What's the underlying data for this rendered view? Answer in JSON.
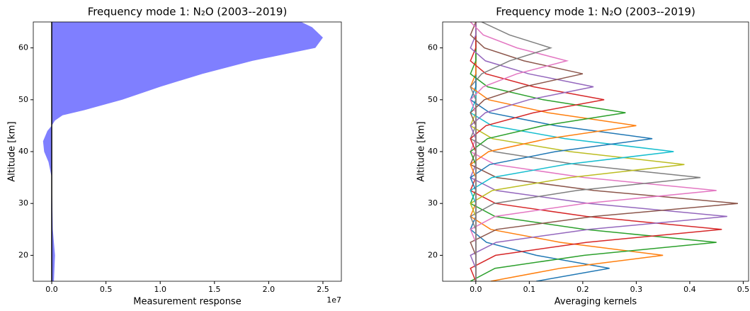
{
  "chart_data": [
    {
      "type": "area",
      "title": "Frequency mode 1: N₂O (2003--2019)",
      "xlabel": "Measurement response",
      "ylabel": "Altitude [km]",
      "x_offset_label": "1e7",
      "y": [
        15,
        20,
        25,
        30,
        35,
        38,
        40,
        42,
        44,
        45,
        46,
        47,
        48,
        50,
        52.5,
        55,
        57.5,
        60,
        62,
        64,
        65
      ],
      "values": [
        200000,
        300000,
        100000,
        50000,
        0,
        -300000,
        -700000,
        -800000,
        -400000,
        0,
        300000,
        1000000,
        3000000,
        6500000,
        10000000,
        13900000,
        18500000,
        24300000,
        25000000,
        24000000,
        23000000
      ],
      "color": "#7f7fff",
      "zero_line_color": "#000000",
      "xlim": [
        -1700000,
        26700000
      ],
      "ylim": [
        15,
        65
      ],
      "xticks": [
        {
          "value": 0,
          "label": "0.0"
        },
        {
          "value": 5000000,
          "label": "0.5"
        },
        {
          "value": 10000000,
          "label": "1.0"
        },
        {
          "value": 15000000,
          "label": "1.5"
        },
        {
          "value": 20000000,
          "label": "2.0"
        },
        {
          "value": 25000000,
          "label": "2.5"
        }
      ],
      "yticks": [
        20,
        30,
        40,
        50,
        60
      ]
    },
    {
      "type": "line",
      "title": "Frequency mode 1: N₂O (2003--2019)",
      "xlabel": "Averaging kernels",
      "ylabel": "Altitude [km]",
      "y": [
        15,
        17.5,
        20,
        22.5,
        25,
        27.5,
        30,
        32.5,
        35,
        37.5,
        40,
        42.5,
        45,
        47.5,
        50,
        52.5,
        55,
        57.5,
        60,
        62.5,
        65
      ],
      "series": [
        {
          "color": "#1f77b4",
          "values": [
            0.113,
            0.25,
            0.113,
            0.02,
            -0.01,
            0,
            0,
            0,
            0,
            0,
            0,
            0,
            0,
            0,
            0,
            0,
            0,
            0,
            0,
            0,
            0
          ]
        },
        {
          "color": "#ff7f0e",
          "values": [
            0.028,
            0.158,
            0.35,
            0.158,
            0.028,
            -0.01,
            0,
            0,
            0,
            0,
            0,
            0,
            0,
            0,
            0,
            0,
            0,
            0,
            0,
            0,
            0
          ]
        },
        {
          "color": "#2ca02c",
          "values": [
            -0.01,
            0.036,
            0.203,
            0.45,
            0.203,
            0.036,
            -0.01,
            0,
            0,
            0,
            0,
            0,
            0,
            0,
            0,
            0,
            0,
            0,
            0,
            0,
            0
          ]
        },
        {
          "color": "#d62728",
          "values": [
            0,
            -0.01,
            0.037,
            0.207,
            0.46,
            0.207,
            0.037,
            -0.01,
            0,
            0,
            0,
            0,
            0,
            0,
            0,
            0,
            0,
            0,
            0,
            0,
            0
          ]
        },
        {
          "color": "#9467bd",
          "values": [
            0,
            0,
            -0.01,
            0.038,
            0.212,
            0.47,
            0.212,
            0.038,
            -0.01,
            0,
            0,
            0,
            0,
            0,
            0,
            0,
            0,
            0,
            0,
            0,
            0
          ]
        },
        {
          "color": "#8c564b",
          "values": [
            0,
            0,
            0,
            -0.01,
            0.039,
            0.221,
            0.49,
            0.221,
            0.039,
            -0.01,
            0,
            0,
            0,
            0,
            0,
            0,
            0,
            0,
            0,
            0,
            0
          ]
        },
        {
          "color": "#e377c2",
          "values": [
            0,
            0,
            0,
            0,
            -0.01,
            0.036,
            0.203,
            0.45,
            0.203,
            0.036,
            -0.01,
            0,
            0,
            0,
            0,
            0,
            0,
            0,
            0,
            0,
            0
          ]
        },
        {
          "color": "#7f7f7f",
          "values": [
            0,
            0,
            0,
            0,
            0,
            -0.01,
            0.034,
            0.189,
            0.42,
            0.189,
            0.034,
            -0.01,
            0,
            0,
            0,
            0,
            0,
            0,
            0,
            0,
            0
          ]
        },
        {
          "color": "#bcbd22",
          "values": [
            0,
            0,
            0,
            0,
            0,
            0,
            -0.01,
            0.031,
            0.176,
            0.39,
            0.176,
            0.031,
            -0.01,
            0,
            0,
            0,
            0,
            0,
            0,
            0,
            0
          ]
        },
        {
          "color": "#17becf",
          "values": [
            0,
            0,
            0,
            0,
            0,
            0,
            0,
            -0.01,
            0.03,
            0.167,
            0.37,
            0.167,
            0.03,
            -0.01,
            0,
            0,
            0,
            0,
            0,
            0,
            0
          ]
        },
        {
          "color": "#1f77b4",
          "values": [
            0,
            0,
            0,
            0,
            0,
            0,
            0,
            0,
            -0.01,
            0.026,
            0.149,
            0.33,
            0.149,
            0.026,
            -0.01,
            0,
            0,
            0,
            0,
            0,
            0
          ]
        },
        {
          "color": "#ff7f0e",
          "values": [
            0,
            0,
            0,
            0,
            0,
            0,
            0,
            0,
            0,
            -0.01,
            0.024,
            0.135,
            0.3,
            0.135,
            0.024,
            -0.01,
            0,
            0,
            0,
            0,
            0
          ]
        },
        {
          "color": "#2ca02c",
          "values": [
            0,
            0,
            0,
            0,
            0,
            0,
            0,
            0,
            0,
            0,
            -0.01,
            0.022,
            0.126,
            0.28,
            0.126,
            0.022,
            -0.01,
            0,
            0,
            0,
            0
          ]
        },
        {
          "color": "#d62728",
          "values": [
            0,
            0,
            0,
            0,
            0,
            0,
            0,
            0,
            0,
            0,
            0,
            -0.01,
            0.019,
            0.108,
            0.24,
            0.108,
            0.019,
            -0.01,
            0,
            0,
            0
          ]
        },
        {
          "color": "#9467bd",
          "values": [
            0,
            0,
            0,
            0,
            0,
            0,
            0,
            0,
            0,
            0,
            0,
            0,
            -0.01,
            0.018,
            0.099,
            0.22,
            0.099,
            0.018,
            -0.01,
            0,
            0
          ]
        },
        {
          "color": "#8c564b",
          "values": [
            0,
            0,
            0,
            0,
            0,
            0,
            0,
            0,
            0,
            0,
            0,
            0,
            0,
            -0.01,
            0.016,
            0.09,
            0.2,
            0.09,
            0.016,
            -0.01,
            0
          ]
        },
        {
          "color": "#e377c2",
          "values": [
            0,
            0,
            0,
            0,
            0,
            0,
            0,
            0,
            0,
            0,
            0,
            0,
            0,
            0,
            -0.01,
            0.014,
            0.077,
            0.17,
            0.077,
            0.014,
            -0.01
          ]
        },
        {
          "color": "#7f7f7f",
          "values": [
            0,
            0,
            0,
            0,
            0,
            0,
            0,
            0,
            0,
            0,
            0,
            0,
            0,
            0,
            0,
            -0.01,
            0.011,
            0.063,
            0.14,
            0.063,
            0.011
          ]
        }
      ],
      "xlim": [
        -0.062,
        0.51
      ],
      "ylim": [
        15,
        65
      ],
      "xticks": [
        {
          "value": 0,
          "label": "0.0"
        },
        0.1,
        0.2,
        0.3,
        0.4,
        0.5
      ],
      "yticks": [
        20,
        30,
        40,
        50,
        60
      ]
    }
  ]
}
